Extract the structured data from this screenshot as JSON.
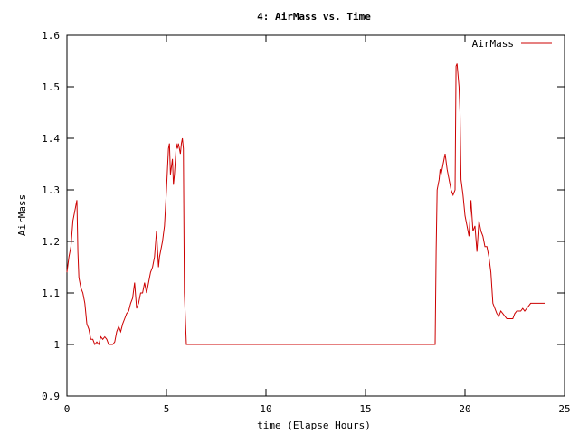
{
  "chart_data": {
    "type": "line",
    "title": "4: AirMass vs. Time",
    "xlabel": "time (Elapse Hours)",
    "ylabel": "AirMass",
    "xlim": [
      0,
      25
    ],
    "ylim": [
      0.9,
      1.6
    ],
    "xticks": [
      0,
      5,
      10,
      15,
      20,
      25
    ],
    "yticks": [
      0.9,
      1,
      1.1,
      1.2,
      1.3,
      1.4,
      1.5,
      1.6
    ],
    "xtick_labels": [
      "0",
      "5",
      "10",
      "15",
      "20",
      "25"
    ],
    "ytick_labels": [
      "0.9",
      "1",
      "1.1",
      "1.2",
      "1.3",
      "1.4",
      "1.5",
      "1.6"
    ],
    "grid": false,
    "legend_position": "top-right",
    "series": [
      {
        "name": "AirMass",
        "color": "#cc0000",
        "x": [
          0,
          0.1,
          0.2,
          0.3,
          0.4,
          0.5,
          0.55,
          0.6,
          0.7,
          0.8,
          0.9,
          1.0,
          1.1,
          1.2,
          1.3,
          1.4,
          1.5,
          1.6,
          1.7,
          1.8,
          1.9,
          2.0,
          2.1,
          2.2,
          2.3,
          2.4,
          2.5,
          2.6,
          2.7,
          2.8,
          2.9,
          3.0,
          3.1,
          3.2,
          3.3,
          3.4,
          3.5,
          3.6,
          3.65,
          3.7,
          3.8,
          3.9,
          4.0,
          4.1,
          4.15,
          4.2,
          4.3,
          4.4,
          4.5,
          4.6,
          4.65,
          4.7,
          4.8,
          4.9,
          5.0,
          5.1,
          5.15,
          5.2,
          5.3,
          5.35,
          5.4,
          5.45,
          5.5,
          5.55,
          5.6,
          5.7,
          5.75,
          5.8,
          5.85,
          5.9,
          5.95,
          6.0,
          6.05,
          18.5,
          18.55,
          18.6,
          18.7,
          18.75,
          18.8,
          18.9,
          19.0,
          19.1,
          19.2,
          19.3,
          19.4,
          19.5,
          19.55,
          19.6,
          19.7,
          19.75,
          19.8,
          19.9,
          20.0,
          20.1,
          20.2,
          20.3,
          20.4,
          20.5,
          20.6,
          20.7,
          20.8,
          20.9,
          21.0,
          21.1,
          21.2,
          21.3,
          21.4,
          21.5,
          21.6,
          21.7,
          21.8,
          21.9,
          22.0,
          22.1,
          22.2,
          22.3,
          22.4,
          22.5,
          22.6,
          22.7,
          22.8,
          22.9,
          23.0,
          23.1,
          23.2,
          23.3,
          23.4,
          23.5,
          23.6,
          23.7,
          23.8,
          23.9,
          24.0
        ],
        "y": [
          1.14,
          1.17,
          1.19,
          1.24,
          1.26,
          1.28,
          1.18,
          1.13,
          1.11,
          1.1,
          1.08,
          1.04,
          1.03,
          1.01,
          1.01,
          1.0,
          1.005,
          1.0,
          1.015,
          1.01,
          1.015,
          1.01,
          1.0,
          1.0,
          1.0,
          1.005,
          1.025,
          1.035,
          1.025,
          1.04,
          1.05,
          1.06,
          1.065,
          1.08,
          1.09,
          1.12,
          1.07,
          1.08,
          1.09,
          1.1,
          1.1,
          1.12,
          1.1,
          1.12,
          1.13,
          1.14,
          1.15,
          1.17,
          1.22,
          1.15,
          1.17,
          1.18,
          1.2,
          1.23,
          1.3,
          1.38,
          1.39,
          1.33,
          1.36,
          1.31,
          1.33,
          1.36,
          1.39,
          1.38,
          1.39,
          1.37,
          1.39,
          1.4,
          1.38,
          1.1,
          1.05,
          1.0,
          1.0,
          1.0,
          1.18,
          1.3,
          1.32,
          1.34,
          1.33,
          1.35,
          1.37,
          1.34,
          1.32,
          1.3,
          1.29,
          1.3,
          1.54,
          1.545,
          1.5,
          1.45,
          1.32,
          1.29,
          1.25,
          1.23,
          1.21,
          1.28,
          1.22,
          1.23,
          1.18,
          1.24,
          1.22,
          1.21,
          1.19,
          1.19,
          1.17,
          1.14,
          1.08,
          1.07,
          1.06,
          1.055,
          1.065,
          1.06,
          1.055,
          1.05,
          1.05,
          1.05,
          1.05,
          1.06,
          1.065,
          1.065,
          1.065,
          1.07,
          1.065,
          1.07,
          1.075,
          1.08,
          1.08,
          1.08,
          1.08,
          1.08,
          1.08,
          1.08,
          1.08
        ]
      }
    ]
  }
}
